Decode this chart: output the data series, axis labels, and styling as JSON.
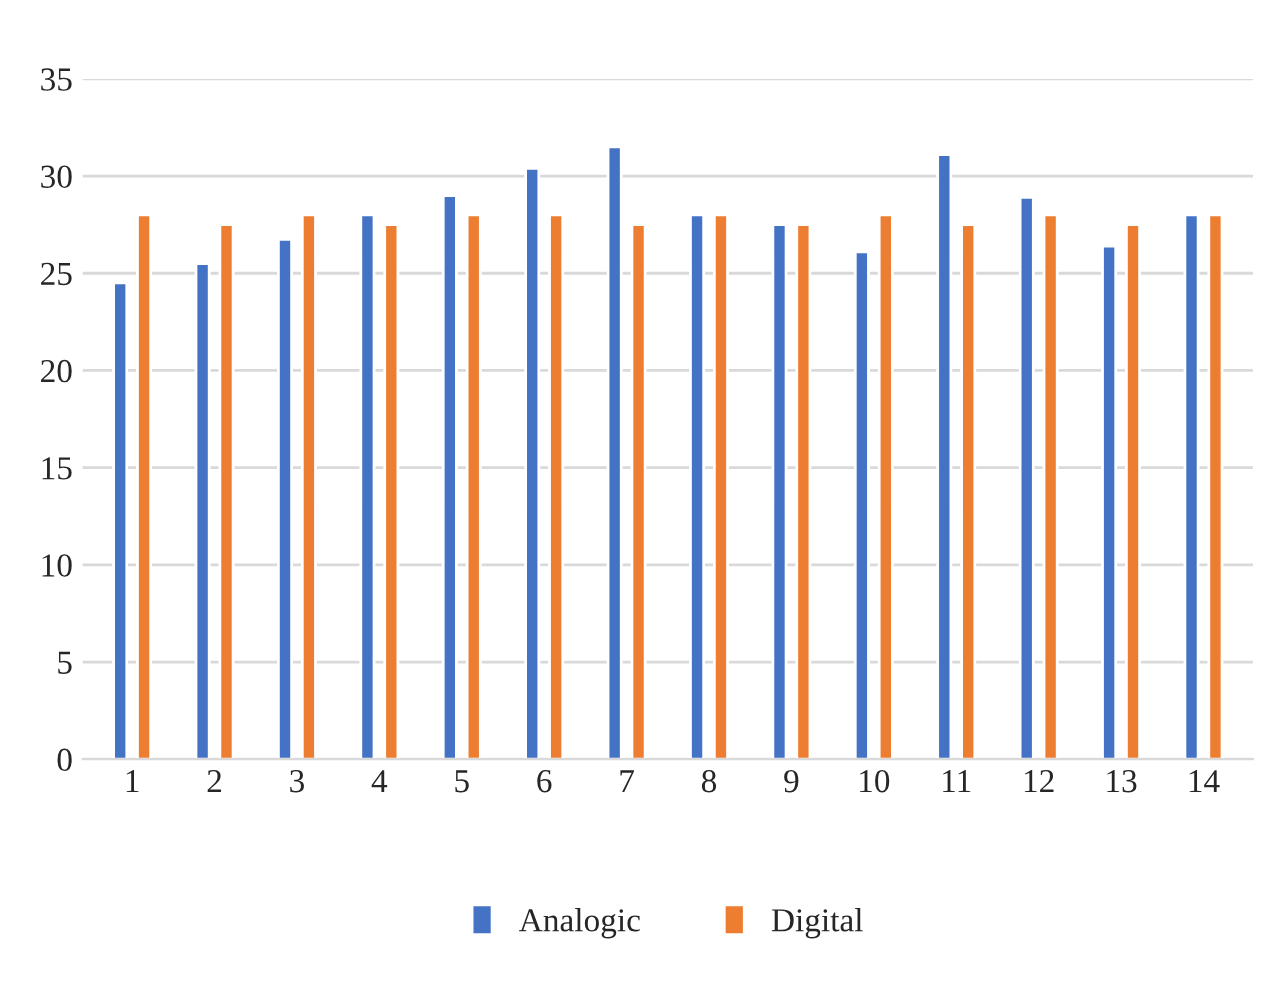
{
  "chart_data": {
    "type": "bar",
    "categories": [
      "1",
      "2",
      "3",
      "4",
      "5",
      "6",
      "7",
      "8",
      "9",
      "10",
      "11",
      "12",
      "13",
      "14"
    ],
    "series": [
      {
        "name": "Analogic",
        "color": "#4472c4",
        "values": [
          24.5,
          25.5,
          26.75,
          28,
          29,
          30.4,
          31.5,
          28,
          27.5,
          26.1,
          31.1,
          28.9,
          26.4,
          28
        ]
      },
      {
        "name": "Digital",
        "color": "#ed7d31",
        "values": [
          28,
          27.5,
          28,
          27.5,
          28,
          28,
          27.5,
          28,
          27.5,
          28,
          27.5,
          28,
          27.5,
          28
        ]
      }
    ],
    "ylim": [
      0,
      35
    ],
    "yticks": [
      0,
      5,
      10,
      15,
      20,
      25,
      30,
      35
    ],
    "grid": "y",
    "legend": "bottom"
  }
}
